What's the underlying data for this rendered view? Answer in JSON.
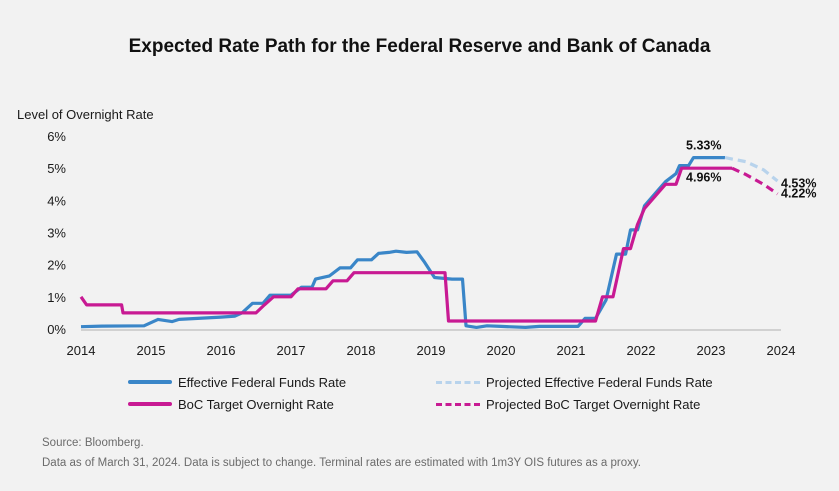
{
  "chart_data": {
    "type": "line",
    "title": "Expected Rate Path for the Federal Reserve and Bank of Canada",
    "ylabel": "Level of Overnight Rate",
    "xlabel": "",
    "xlim": [
      2014,
      2024
    ],
    "ylim": [
      0,
      6
    ],
    "x_ticks": [
      "2014",
      "2015",
      "2016",
      "2017",
      "2018",
      "2019",
      "2020",
      "2021",
      "2022",
      "2023",
      "2024"
    ],
    "y_ticks": [
      "0%",
      "1%",
      "2%",
      "3%",
      "4%",
      "5%",
      "6%"
    ],
    "grid": false,
    "legend": "bottom",
    "series": [
      {
        "name": "Effective Federal Funds Rate",
        "color": "#3a86c8",
        "style": "solid",
        "points": [
          [
            2014.0,
            0.07
          ],
          [
            2014.3,
            0.09
          ],
          [
            2014.9,
            0.1
          ],
          [
            2015.1,
            0.3
          ],
          [
            2015.3,
            0.23
          ],
          [
            2015.4,
            0.3
          ],
          [
            2016.0,
            0.37
          ],
          [
            2016.2,
            0.4
          ],
          [
            2016.3,
            0.5
          ],
          [
            2016.45,
            0.8
          ],
          [
            2016.6,
            0.8
          ],
          [
            2016.7,
            1.05
          ],
          [
            2017.0,
            1.05
          ],
          [
            2017.15,
            1.3
          ],
          [
            2017.3,
            1.3
          ],
          [
            2017.35,
            1.55
          ],
          [
            2017.55,
            1.65
          ],
          [
            2017.7,
            1.9
          ],
          [
            2017.85,
            1.9
          ],
          [
            2017.95,
            2.15
          ],
          [
            2018.15,
            2.15
          ],
          [
            2018.25,
            2.35
          ],
          [
            2018.4,
            2.38
          ],
          [
            2018.5,
            2.42
          ],
          [
            2018.65,
            2.38
          ],
          [
            2018.8,
            2.4
          ],
          [
            2018.9,
            2.1
          ],
          [
            2019.05,
            1.6
          ],
          [
            2019.3,
            1.55
          ],
          [
            2019.45,
            1.55
          ],
          [
            2019.5,
            0.1
          ],
          [
            2019.65,
            0.05
          ],
          [
            2019.8,
            0.1
          ],
          [
            2020.0,
            0.08
          ],
          [
            2020.35,
            0.05
          ],
          [
            2020.55,
            0.08
          ],
          [
            2020.8,
            0.08
          ],
          [
            2021.0,
            0.08
          ],
          [
            2021.1,
            0.08
          ],
          [
            2021.2,
            0.33
          ],
          [
            2021.35,
            0.33
          ],
          [
            2021.5,
            0.9
          ],
          [
            2021.65,
            2.33
          ],
          [
            2021.78,
            2.33
          ],
          [
            2021.85,
            3.08
          ],
          [
            2021.95,
            3.08
          ],
          [
            2022.05,
            3.83
          ],
          [
            2022.25,
            4.33
          ],
          [
            2022.35,
            4.58
          ],
          [
            2022.5,
            4.83
          ],
          [
            2022.55,
            5.08
          ],
          [
            2022.68,
            5.08
          ],
          [
            2022.75,
            5.33
          ],
          [
            2023.2,
            5.33
          ]
        ]
      },
      {
        "name": "Projected Effective Federal Funds Rate",
        "color": "#b8d3ec",
        "style": "dashed",
        "points": [
          [
            2023.2,
            5.33
          ],
          [
            2023.5,
            5.2
          ],
          [
            2023.75,
            4.95
          ],
          [
            2023.95,
            4.6
          ]
        ]
      },
      {
        "name": "BoC Target Overnight Rate",
        "color": "#c81a93",
        "style": "solid",
        "points": [
          [
            2014.0,
            1.0
          ],
          [
            2014.08,
            0.75
          ],
          [
            2014.58,
            0.75
          ],
          [
            2014.6,
            0.5
          ],
          [
            2016.5,
            0.5
          ],
          [
            2016.62,
            0.75
          ],
          [
            2016.75,
            1.0
          ],
          [
            2017.0,
            1.0
          ],
          [
            2017.1,
            1.25
          ],
          [
            2017.5,
            1.25
          ],
          [
            2017.6,
            1.5
          ],
          [
            2017.8,
            1.5
          ],
          [
            2017.9,
            1.75
          ],
          [
            2019.2,
            1.75
          ],
          [
            2019.25,
            0.25
          ],
          [
            2021.12,
            0.25
          ],
          [
            2021.35,
            0.25
          ],
          [
            2021.45,
            1.0
          ],
          [
            2021.6,
            1.0
          ],
          [
            2021.65,
            1.5
          ],
          [
            2021.75,
            2.5
          ],
          [
            2021.85,
            2.5
          ],
          [
            2021.95,
            3.25
          ],
          [
            2022.05,
            3.75
          ],
          [
            2022.25,
            4.25
          ],
          [
            2022.35,
            4.5
          ],
          [
            2022.5,
            4.5
          ],
          [
            2022.58,
            5.0
          ],
          [
            2023.3,
            5.0
          ]
        ]
      },
      {
        "name": "Projected BoC Target Overnight Rate",
        "color": "#c81a93",
        "style": "dashed",
        "points": [
          [
            2023.3,
            5.0
          ],
          [
            2023.5,
            4.8
          ],
          [
            2023.75,
            4.5
          ],
          [
            2023.95,
            4.2
          ]
        ]
      }
    ],
    "annotations": [
      {
        "text": "5.33%",
        "x": 2023.15,
        "y": 5.33
      },
      {
        "text": "4.53%",
        "x": 2024.0,
        "y": 4.53
      },
      {
        "text": "4.96%",
        "x": 2023.15,
        "y": 4.96
      },
      {
        "text": "4.22%",
        "x": 2024.0,
        "y": 4.22
      }
    ]
  },
  "legend": {
    "fed": "Effective Federal Funds Rate",
    "fed_proj": "Projected Effective Federal Funds Rate",
    "boc": "BoC Target Overnight Rate",
    "boc_proj": "Projected BoC Target Overnight Rate"
  },
  "footnotes": {
    "source": "Source: Bloomberg.",
    "note": "Data as of March 31, 2024. Data is subject to change. Terminal rates are estimated with 1m3Y OIS futures as a proxy."
  }
}
